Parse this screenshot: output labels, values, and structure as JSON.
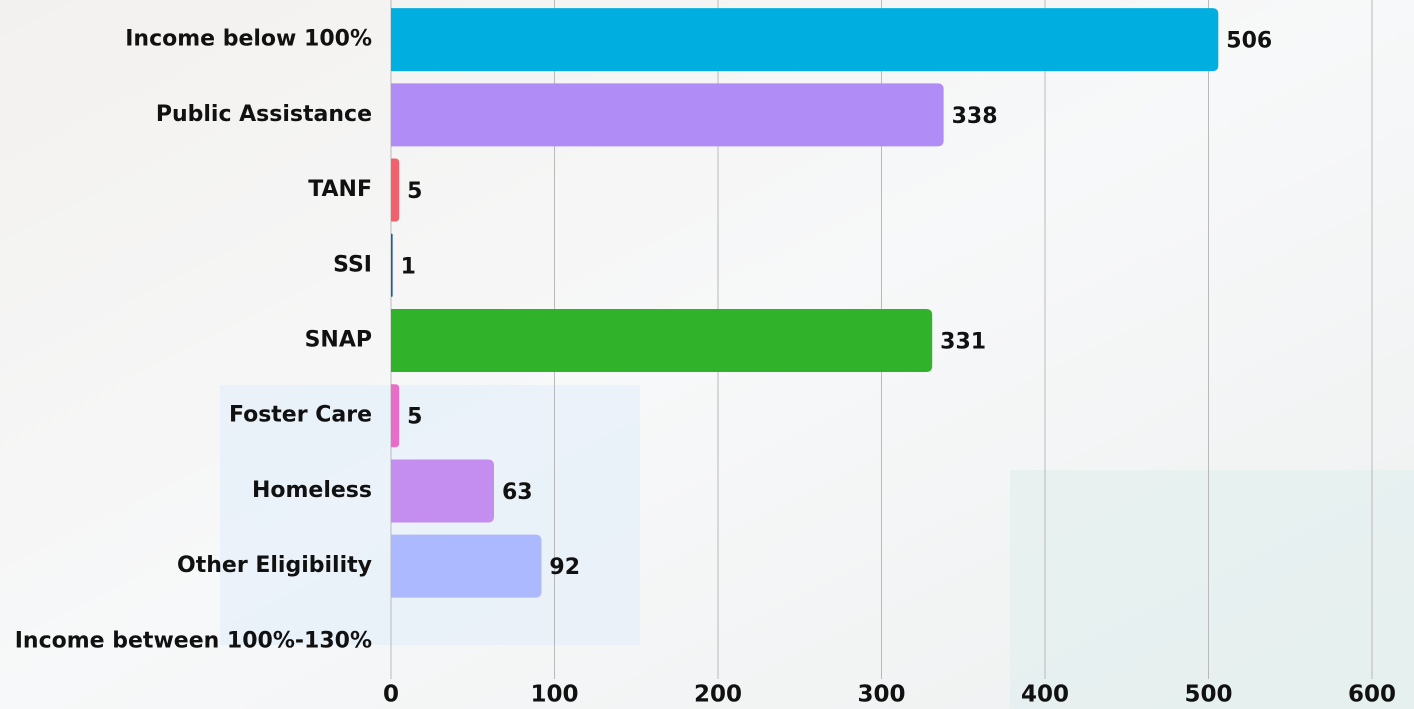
{
  "chart_data": {
    "type": "hbar",
    "categories": [
      "Income below 100%",
      "Public Assistance",
      "TANF",
      "SSI",
      "SNAP",
      "Foster Care",
      "Homeless",
      "Other Eligibility",
      "Income between 100%-130%"
    ],
    "values": [
      506,
      338,
      5,
      1,
      331,
      5,
      63,
      92,
      null
    ],
    "colors": [
      "#00aee0",
      "#b08df6",
      "#f2606b",
      "#1f5ba8",
      "#30b22a",
      "#ea6cc9",
      "#c48ef0",
      "#adb9fe",
      null
    ],
    "xlim": [
      0,
      600
    ],
    "xticks": [
      0,
      100,
      200,
      300,
      400,
      500,
      600
    ],
    "grid": true
  }
}
